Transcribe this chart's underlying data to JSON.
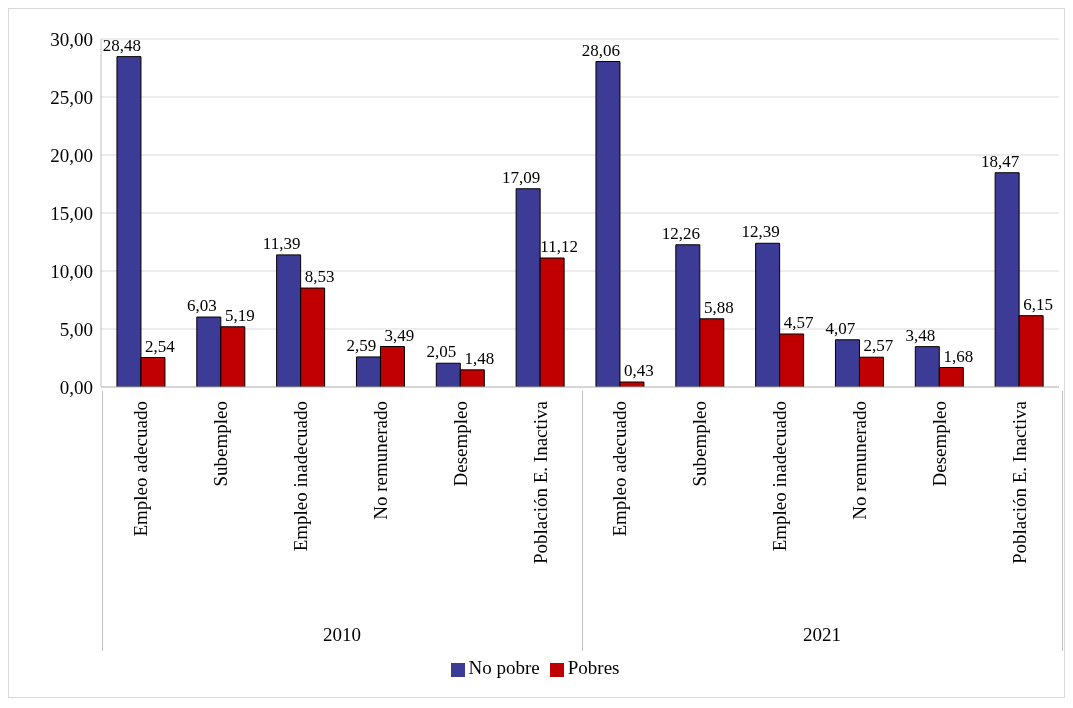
{
  "chart_data": {
    "type": "bar",
    "categories": [
      "Empleo adecuado",
      "Subempleo",
      "Empleo inadecuado",
      "No remunerado",
      "Desempleo",
      "Población E. Inactiva",
      "Empleo adecuado",
      "Subempleo",
      "Empleo inadecuado",
      "No remunerado",
      "Desempleo",
      "Población E. Inactiva"
    ],
    "series": [
      {
        "name": "No pobre",
        "color": "#3c3c96",
        "values": [
          28.48,
          6.03,
          11.39,
          2.59,
          2.05,
          17.09,
          28.06,
          12.26,
          12.39,
          4.07,
          3.48,
          18.47
        ],
        "value_labels": [
          "28,48",
          "6,03",
          "11,39",
          "2,59",
          "2,05",
          "17,09",
          "28,06",
          "12,26",
          "12,39",
          "4,07",
          "3,48",
          "18,47"
        ]
      },
      {
        "name": "Pobres",
        "color": "#c00000",
        "values": [
          2.54,
          5.19,
          8.53,
          3.49,
          1.48,
          11.12,
          0.43,
          5.88,
          4.57,
          2.57,
          1.68,
          6.15
        ],
        "value_labels": [
          "2,54",
          "5,19",
          "8,53",
          "3,49",
          "1,48",
          "11,12",
          "0,43",
          "5,88",
          "4,57",
          "2,57",
          "1,68",
          "6,15"
        ]
      }
    ],
    "annotations": [
      "2010",
      "2021"
    ],
    "ylim": [
      0,
      30
    ],
    "yticks": [
      {
        "value": 0,
        "label": "0,00"
      },
      {
        "value": 5,
        "label": "5,00"
      },
      {
        "value": 10,
        "label": "10,00"
      },
      {
        "value": 15,
        "label": "15,00"
      },
      {
        "value": 20,
        "label": "20,00"
      },
      {
        "value": 25,
        "label": "25,00"
      },
      {
        "value": 30,
        "label": "30,00"
      }
    ],
    "grid": "y",
    "legend": "bottom"
  }
}
